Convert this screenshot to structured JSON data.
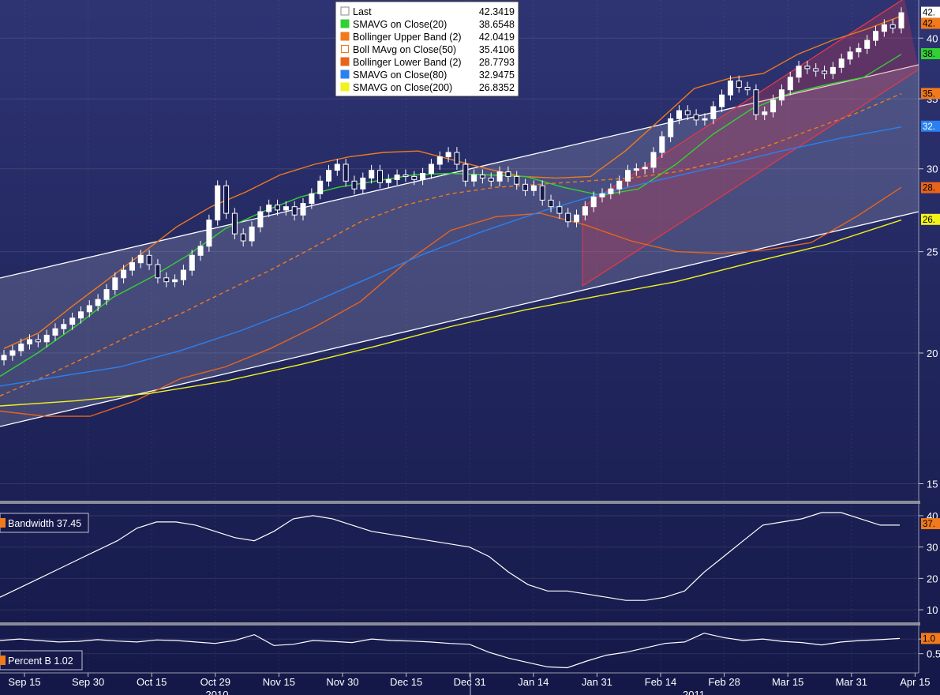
{
  "colors": {
    "background_top": "#2e3473",
    "background_bottom": "#141848",
    "last": "#ffffff",
    "sma20": "#33d033",
    "boll_upper": "#f07a1c",
    "boll_mid": "#f07a1c",
    "boll_lower": "#e8641c",
    "sma80": "#2a80f0",
    "sma200": "#f2f21e",
    "channel_white": "#ffffff",
    "channel_red": "#e0384a",
    "bandwidth": "#ffffff",
    "percent_b": "#ffffff"
  },
  "chart_data": [
    {
      "type": "candlestick",
      "panel": "price",
      "y_scale": "log",
      "ylim": [
        14.5,
        43.5
      ],
      "y_ticks": [
        "15",
        "20",
        "25",
        "30",
        "35",
        "40"
      ],
      "x_tick_labels": [
        "Sep 15",
        "Sep 30",
        "Oct 15",
        "Oct 29",
        "Nov 15",
        "Nov 30",
        "Dec 15",
        "Dec 31",
        "Jan 14",
        "Jan 31",
        "Feb 14",
        "Feb 28",
        "Mar 15",
        "Mar 31",
        "Apr 15"
      ],
      "year_labels": [
        "2010",
        "2011"
      ],
      "legend": {
        "placement": "top-center",
        "entries": [
          {
            "label": "Last",
            "value": "42.3419",
            "color": "#ffffff"
          },
          {
            "label": "SMAVG on Close(20)",
            "value": "38.6548",
            "color": "#33d033"
          },
          {
            "label": "Bollinger Upper Band (2)",
            "value": "42.0419",
            "color": "#f07a1c"
          },
          {
            "label": "Boll MAvg on Close(50)",
            "value": "35.4106",
            "color": "#f07a1c",
            "dashed": true
          },
          {
            "label": "Bollinger Lower Band (2)",
            "value": "28.7793",
            "color": "#e8641c"
          },
          {
            "label": "SMAVG on Close(80)",
            "value": "32.9475",
            "color": "#2a80f0"
          },
          {
            "label": "SMAVG on Close(200)",
            "value": "26.8352",
            "color": "#f2f21e"
          }
        ]
      },
      "right_tags": [
        {
          "text": "42.",
          "value": 42.34,
          "bg": "#ffffff",
          "fg": "#000000"
        },
        {
          "text": "42.",
          "value": 42.04,
          "bg": "#f07a1c",
          "fg": "#000000"
        },
        {
          "text": "38.",
          "value": 38.65,
          "bg": "#33d033",
          "fg": "#000000"
        },
        {
          "text": "35.",
          "value": 35.41,
          "bg": "#f07a1c",
          "fg": "#000000"
        },
        {
          "text": "32.",
          "value": 32.95,
          "bg": "#2a80f0",
          "fg": "#ffffff"
        },
        {
          "text": "28.",
          "value": 28.78,
          "bg": "#e8641c",
          "fg": "#000000"
        },
        {
          "text": "26.",
          "value": 26.84,
          "bg": "#f2f21e",
          "fg": "#000000"
        }
      ],
      "close_series": [
        19.9,
        20.1,
        20.4,
        20.6,
        20.5,
        20.8,
        21.1,
        21.3,
        21.6,
        21.9,
        22.2,
        22.5,
        23.0,
        23.6,
        24.0,
        24.4,
        24.8,
        24.3,
        23.6,
        23.4,
        23.5,
        24.0,
        24.8,
        25.3,
        26.8,
        28.9,
        27.2,
        26.0,
        25.6,
        26.4,
        27.3,
        27.7,
        27.4,
        27.6,
        27.1,
        27.8,
        28.4,
        29.2,
        29.9,
        30.3,
        29.2,
        28.7,
        29.4,
        29.9,
        29.1,
        29.3,
        29.6,
        29.5,
        29.3,
        29.7,
        30.3,
        30.8,
        31.1,
        30.3,
        29.2,
        29.6,
        29.4,
        29.2,
        29.8,
        29.5,
        29.0,
        28.6,
        28.9,
        28.0,
        27.6,
        27.2,
        26.7,
        27.1,
        27.6,
        28.2,
        28.4,
        28.7,
        29.2,
        29.9,
        30.0,
        30.1,
        31.1,
        32.2,
        33.5,
        34.1,
        33.8,
        33.4,
        33.5,
        34.4,
        35.3,
        36.4,
        35.9,
        35.7,
        33.8,
        34.0,
        34.9,
        35.7,
        36.7,
        37.6,
        37.4,
        37.2,
        37.0,
        37.5,
        38.2,
        38.8,
        39.1,
        39.8,
        40.6,
        41.2,
        40.9,
        42.3
      ],
      "series": [
        {
          "name": "Bollinger Upper Band (2)",
          "values": [
            20.2,
            20.9,
            22.2,
            23.5,
            24.9,
            26.4,
            27.6,
            28.5,
            29.6,
            30.3,
            30.8,
            31.1,
            31.2,
            30.6,
            30.0,
            29.5,
            29.4,
            29.5,
            31.2,
            33.4,
            35.8,
            36.6,
            37.0,
            38.6,
            39.8,
            40.8,
            42.0
          ]
        },
        {
          "name": "Bollinger Lower Band (2)",
          "values": [
            17.6,
            17.4,
            17.4,
            18.0,
            18.9,
            19.4,
            20.2,
            21.2,
            22.4,
            24.4,
            26.2,
            27.0,
            27.2,
            26.5,
            25.6,
            25.0,
            24.9,
            25.1,
            25.5,
            27.0,
            28.8
          ]
        },
        {
          "name": "SMAVG on Close(20)",
          "values": [
            19.0,
            20.0,
            21.2,
            22.6,
            23.6,
            24.8,
            26.3,
            27.3,
            28.2,
            28.8,
            29.2,
            29.6,
            29.7,
            29.6,
            29.5,
            28.8,
            28.3,
            28.7,
            30.3,
            32.4,
            34.2,
            35.4,
            36.1,
            36.7,
            38.6
          ]
        },
        {
          "name": "Boll MAvg on Close(50)",
          "values": [
            18.2,
            19.0,
            19.9,
            20.9,
            21.8,
            22.9,
            24.0,
            25.3,
            26.7,
            27.7,
            28.4,
            28.8,
            29.0,
            29.2,
            29.4,
            29.8,
            30.5,
            31.5,
            32.7,
            33.9,
            35.4
          ]
        },
        {
          "name": "SMAVG on Close(80)",
          "values": [
            18.6,
            19.0,
            19.4,
            20.1,
            21.0,
            22.1,
            23.4,
            24.8,
            26.1,
            27.3,
            28.4,
            29.3,
            30.2,
            31.2,
            32.1,
            32.9
          ]
        },
        {
          "name": "SMAVG on Close(200)",
          "values": [
            17.8,
            18.0,
            18.3,
            18.8,
            19.5,
            20.3,
            21.2,
            22.0,
            22.7,
            23.4,
            24.4,
            25.4,
            26.8
          ]
        }
      ]
    },
    {
      "type": "line",
      "panel": "bandwidth",
      "label": "Bandwidth 37.45",
      "y_ticks": [
        "10",
        "20",
        "30",
        "40"
      ],
      "ylim": [
        7,
        42
      ],
      "right_tag": {
        "text": "37.",
        "value": 37.45,
        "bg": "#f07a1c",
        "fg": "#000000"
      },
      "series": [
        {
          "values": [
            14,
            17,
            20,
            23,
            26,
            29,
            32,
            36,
            38,
            38,
            37,
            35,
            33,
            32,
            35,
            39,
            40,
            39,
            37,
            35,
            34,
            33,
            32,
            31,
            30,
            27,
            22,
            18,
            16,
            16,
            15,
            14,
            13,
            13,
            14,
            16,
            22,
            27,
            32,
            37,
            38,
            39,
            41,
            41,
            39,
            37,
            37
          ]
        }
      ]
    },
    {
      "type": "line",
      "panel": "percent_b",
      "label": "Percent B 1.02",
      "y_ticks": [
        "0.5",
        "1.0"
      ],
      "ylim": [
        -0.1,
        1.3
      ],
      "right_tag": {
        "text": "1.0",
        "value": 1.02,
        "bg": "#f07a1c",
        "fg": "#000000"
      },
      "series": [
        {
          "values": [
            0.95,
            1.0,
            0.95,
            0.9,
            0.92,
            0.98,
            0.93,
            0.9,
            0.97,
            0.95,
            0.9,
            0.85,
            0.95,
            1.15,
            0.78,
            0.82,
            0.95,
            0.92,
            0.88,
            1.0,
            0.95,
            0.93,
            0.9,
            0.85,
            0.82,
            0.55,
            0.35,
            0.2,
            0.05,
            0.02,
            0.25,
            0.45,
            0.55,
            0.7,
            0.85,
            0.9,
            1.2,
            1.05,
            0.95,
            1.0,
            0.92,
            0.88,
            0.8,
            0.9,
            0.95,
            0.98,
            1.02
          ]
        }
      ]
    }
  ]
}
